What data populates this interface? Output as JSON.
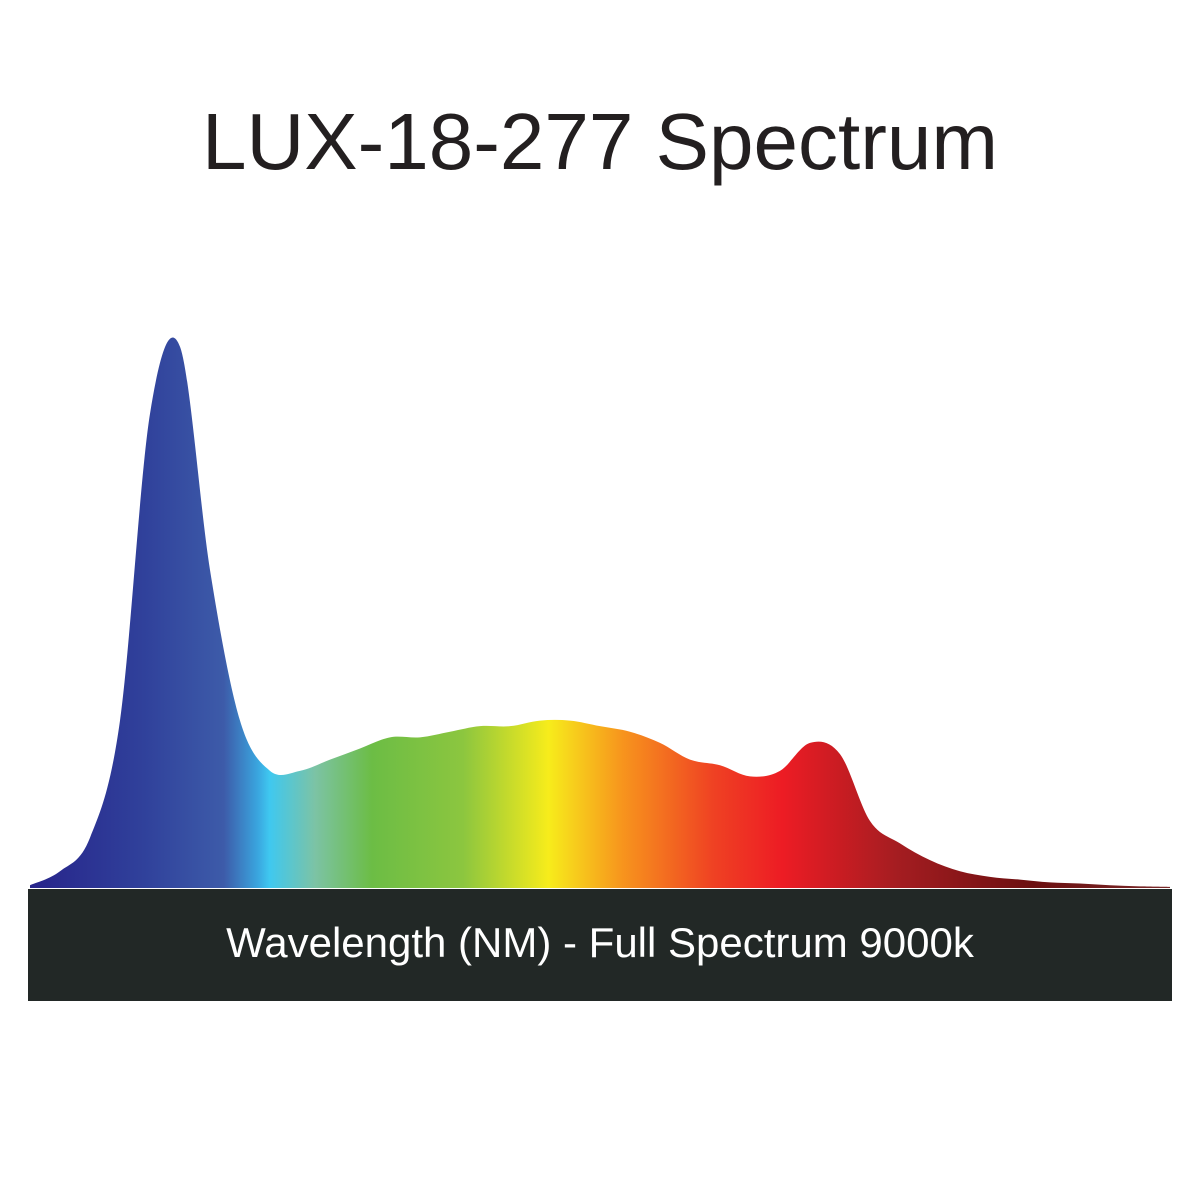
{
  "chart_data": {
    "type": "area",
    "title": "LUX-18-277 Spectrum",
    "x_label": "Wavelength (NM) - Full Spectrum 9000k",
    "values": [
      0.5,
      3,
      9,
      30,
      85,
      97,
      57,
      30,
      21,
      21,
      23,
      25,
      27,
      27,
      28,
      29,
      29,
      30,
      30,
      29,
      28,
      26,
      23,
      22,
      20,
      21,
      26,
      24,
      12,
      8,
      5,
      3,
      2,
      1.5,
      1,
      0.8,
      0.5,
      0.3,
      0.2
    ],
    "ylim": [
      0,
      100
    ]
  }
}
